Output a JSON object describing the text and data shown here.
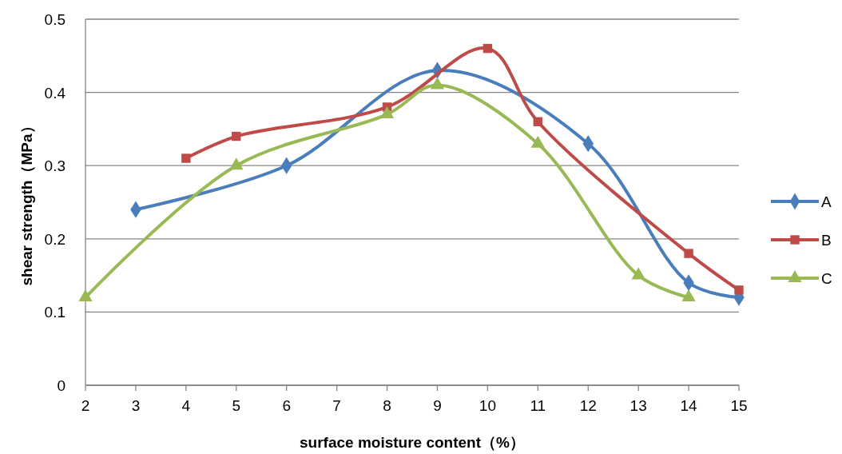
{
  "chart_data": {
    "type": "line",
    "xlabel": "surface moisture content（%）",
    "ylabel": "shear  strength（MPa）",
    "xlim": [
      2,
      15
    ],
    "xticks": [
      2,
      3,
      4,
      5,
      6,
      7,
      8,
      9,
      10,
      11,
      12,
      13,
      14,
      15
    ],
    "ylim": [
      0,
      0.5
    ],
    "yticks": [
      0,
      0.1,
      0.2,
      0.3,
      0.4,
      0.5
    ],
    "grid": "y",
    "legend": "right",
    "series": [
      {
        "name": "A",
        "color": "#4a7ebb",
        "marker": "diamond",
        "x": [
          3,
          6,
          8,
          9,
          12,
          14,
          15
        ],
        "values": [
          0.24,
          0.3,
          null,
          0.43,
          0.33,
          0.14,
          0.12
        ]
      },
      {
        "name": "B",
        "color": "#be4b48",
        "marker": "square",
        "x": [
          4,
          5,
          8,
          10,
          11,
          14,
          15
        ],
        "values": [
          0.31,
          0.34,
          0.38,
          0.46,
          0.36,
          0.18,
          0.13
        ]
      },
      {
        "name": "C",
        "color": "#98b954",
        "marker": "triangle",
        "x": [
          2,
          5,
          8,
          9,
          11,
          13,
          14
        ],
        "values": [
          0.12,
          0.3,
          0.37,
          0.41,
          0.33,
          0.15,
          0.12
        ]
      }
    ]
  }
}
